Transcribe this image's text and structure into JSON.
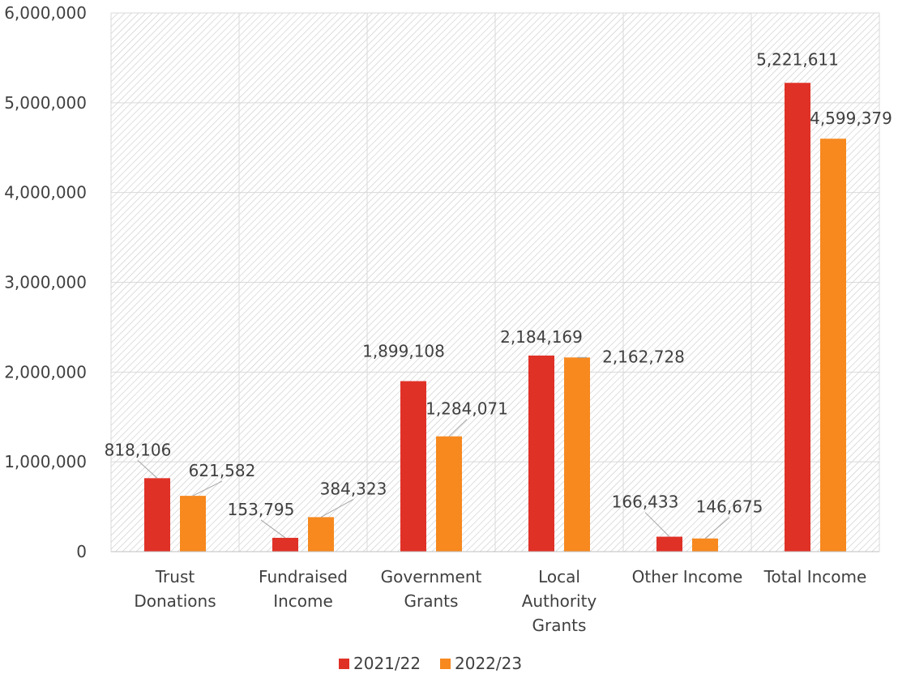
{
  "chart_data": {
    "type": "bar",
    "categories": [
      [
        "Trust",
        "Donations"
      ],
      [
        "Fundraised",
        "Income"
      ],
      [
        "Government",
        "Grants"
      ],
      [
        "Local",
        "Authority",
        "Grants"
      ],
      [
        "Other Income"
      ],
      [
        "Total Income"
      ]
    ],
    "series": [
      {
        "name": "2021/22",
        "color": "#e03127",
        "values": [
          818106,
          153795,
          1899108,
          2184169,
          166433,
          5221611
        ],
        "labels": [
          "818,106",
          "153,795",
          "1,899,108",
          "2,184,169",
          "166,433",
          "5,221,611"
        ]
      },
      {
        "name": "2022/23",
        "color": "#f7891f",
        "values": [
          621582,
          384323,
          1284071,
          2162728,
          146675,
          4599379
        ],
        "labels": [
          "621,582",
          "384,323",
          "1,284,071",
          "2,162,728",
          "146,675",
          "4,599,379"
        ]
      }
    ],
    "ylim": [
      0,
      6000000
    ],
    "yticks": [
      0,
      1000000,
      2000000,
      3000000,
      4000000,
      5000000,
      6000000
    ],
    "ytick_labels": [
      "0",
      "1,000,000",
      "2,000,000",
      "3,000,000",
      "4,000,000",
      "5,000,000",
      "6,000,000"
    ],
    "grid": true,
    "legend": "bottom"
  }
}
